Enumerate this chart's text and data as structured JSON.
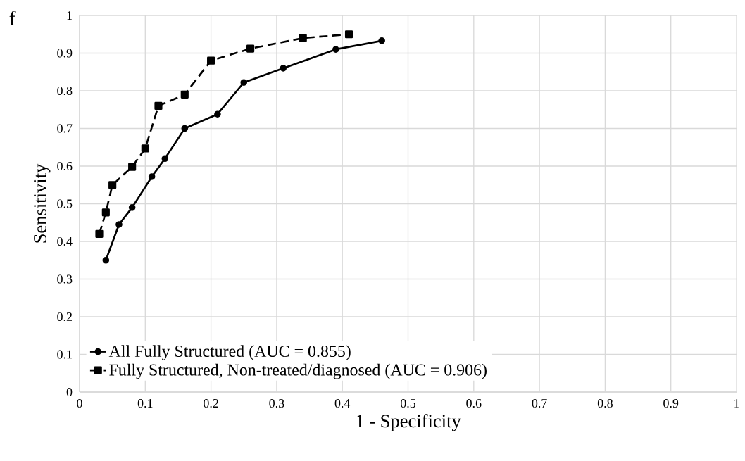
{
  "chart_data": {
    "type": "line",
    "xlabel": "1 - Specificity",
    "ylabel": "Sensitivity",
    "annotations": [
      "f"
    ],
    "xlim": [
      0,
      1
    ],
    "xticks": [
      0,
      0.1,
      0.2,
      0.3,
      0.4,
      0.5,
      0.6,
      0.7,
      0.8,
      0.9,
      1
    ],
    "ylim": [
      0,
      1
    ],
    "yticks": [
      0,
      0.1,
      0.2,
      0.3,
      0.4,
      0.5,
      0.6,
      0.7,
      0.8,
      0.9,
      1
    ],
    "grid": true,
    "legend": "bottom left",
    "series": [
      {
        "name": "All Fully Structured (AUC = 0.855)",
        "color": "#000000",
        "marker": "circle",
        "line_style": "solid",
        "x": [
          0.04,
          0.06,
          0.08,
          0.11,
          0.13,
          0.16,
          0.21,
          0.25,
          0.31,
          0.39,
          0.46
        ],
        "values": [
          0.35,
          0.445,
          0.49,
          0.572,
          0.62,
          0.7,
          0.738,
          0.822,
          0.86,
          0.91,
          0.933
        ]
      },
      {
        "name": "Fully Structured, Non-treated/diagnosed (AUC = 0.906)",
        "color": "#000000",
        "marker": "square",
        "line_style": "dashed",
        "x": [
          0.03,
          0.04,
          0.05,
          0.08,
          0.1,
          0.12,
          0.16,
          0.2,
          0.26,
          0.34,
          0.41
        ],
        "values": [
          0.42,
          0.477,
          0.55,
          0.598,
          0.647,
          0.76,
          0.79,
          0.88,
          0.912,
          0.94,
          0.95
        ]
      }
    ]
  }
}
